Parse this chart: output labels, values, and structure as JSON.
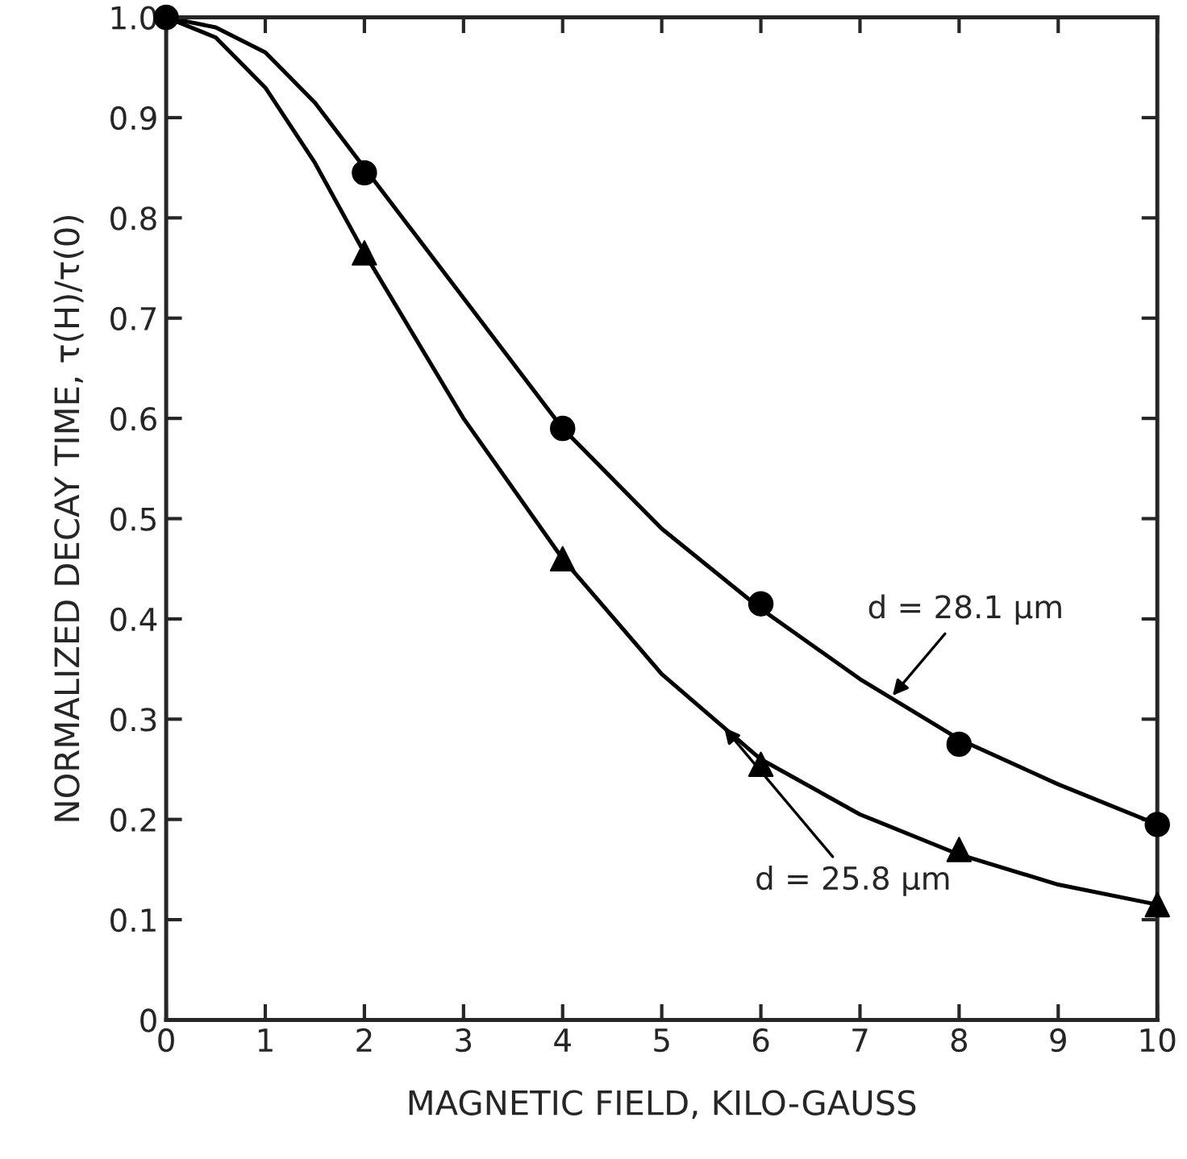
{
  "chart_data": {
    "type": "scatter",
    "xlabel": "MAGNETIC FIELD, KILO-GAUSS",
    "ylabel": "NORMALIZED DECAY TIME, τ(H)/τ(0)",
    "x": [
      0,
      2,
      4,
      6,
      8,
      10
    ],
    "series": [
      {
        "marker": "circle",
        "color": "#000000",
        "values": [
          1.0,
          0.845,
          0.59,
          0.415,
          0.275,
          0.195
        ]
      },
      {
        "marker": "triangle",
        "color": "#000000",
        "values": [
          null,
          0.765,
          0.46,
          0.255,
          0.17,
          0.115
        ]
      },
      {
        "type": "line",
        "marker": "none",
        "color": "#000000",
        "x": [
          0,
          0.5,
          1,
          1.5,
          2,
          3,
          4,
          5,
          6,
          7,
          8,
          9,
          10
        ],
        "values": [
          1.0,
          0.99,
          0.965,
          0.915,
          0.85,
          0.72,
          0.59,
          0.49,
          0.41,
          0.34,
          0.28,
          0.235,
          0.195
        ]
      },
      {
        "type": "line",
        "marker": "none",
        "color": "#000000",
        "x": [
          0,
          0.5,
          1,
          1.5,
          2,
          3,
          4,
          5,
          6,
          7,
          8,
          9,
          10
        ],
        "values": [
          1.0,
          0.98,
          0.93,
          0.855,
          0.765,
          0.6,
          0.46,
          0.345,
          0.26,
          0.205,
          0.165,
          0.135,
          0.115
        ]
      }
    ],
    "annotations": [
      {
        "text": "d = 28.1 μm",
        "x": 7.3,
        "y": 0.32
      },
      {
        "text": "d = 25.8 μm",
        "x": 5.6,
        "y": 0.295
      }
    ],
    "xlim": [
      0,
      10
    ],
    "xticks": [
      0,
      1,
      2,
      3,
      4,
      5,
      6,
      7,
      8,
      9,
      10
    ],
    "ylim": [
      0,
      1.0
    ],
    "yticks": [
      0,
      {
        "value": 0.1,
        "label": "0.1"
      },
      {
        "value": 0.2,
        "label": "0.2"
      },
      {
        "value": 0.3,
        "label": "0.3"
      },
      {
        "value": 0.4,
        "label": "0.4"
      },
      {
        "value": 0.5,
        "label": "0.5"
      },
      {
        "value": 0.6,
        "label": "0.6"
      },
      {
        "value": 0.7,
        "label": "0.7"
      },
      {
        "value": 0.8,
        "label": "0.8"
      },
      {
        "value": 0.9,
        "label": "0.9"
      },
      {
        "value": 1.0,
        "label": "1.0"
      }
    ],
    "grid": false,
    "legend": false,
    "line_style": "solid"
  }
}
